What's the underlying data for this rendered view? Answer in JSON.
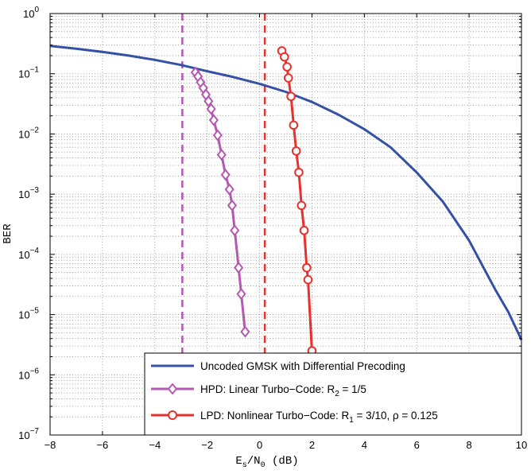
{
  "chart_data": {
    "type": "line",
    "title": "",
    "xlabel": {
      "base": "E",
      "sub1": "s",
      "mid": "/N",
      "sub2": "0",
      "unit": " (dB)"
    },
    "ylabel": "BER",
    "xlim": [
      -8,
      10
    ],
    "ylim_exp": [
      -7,
      0
    ],
    "yscale": "log",
    "grid": true,
    "x_ticks": [
      -8,
      -6,
      -4,
      -2,
      0,
      2,
      4,
      6,
      8,
      10
    ],
    "y_tick_exps": [
      -7,
      -6,
      -5,
      -4,
      -3,
      -2,
      -1,
      0
    ],
    "y_tick_base": "10",
    "legend_position": "lower-right",
    "vlines": [
      {
        "x": -2.95,
        "color": "#b558b0"
      },
      {
        "x": 0.2,
        "color": "#e8312c"
      }
    ],
    "series": [
      {
        "name": "Uncoded GMSK with Differential Precoding",
        "color": "#3451a6",
        "marker": "none",
        "x": [
          -8,
          -7,
          -6,
          -5,
          -4,
          -3,
          -2,
          -1,
          0,
          1,
          2,
          3,
          4,
          5,
          6,
          7,
          8,
          9,
          9.5,
          10
        ],
        "y": [
          0.29,
          0.26,
          0.23,
          0.2,
          0.17,
          0.14,
          0.11,
          0.088,
          0.068,
          0.05,
          0.034,
          0.021,
          0.012,
          0.006,
          0.0023,
          0.00075,
          0.00017,
          2.6e-05,
          1.1e-05,
          3.8e-06
        ]
      },
      {
        "name": "HPD: Linear Turbo−Code: R",
        "legend_sub": "2",
        "legend_tail": " = 1/5",
        "color": "#b558b0",
        "marker": "diamond",
        "x": [
          -2.45,
          -2.35,
          -2.25,
          -2.15,
          -2.05,
          -1.95,
          -1.85,
          -1.75,
          -1.6,
          -1.45,
          -1.3,
          -1.15,
          -1.05,
          -0.95,
          -0.8,
          -0.7,
          -0.55
        ],
        "y": [
          0.105,
          0.09,
          0.072,
          0.058,
          0.045,
          0.035,
          0.026,
          0.017,
          0.0095,
          0.0045,
          0.0021,
          0.0012,
          0.00065,
          0.00025,
          6e-05,
          2.2e-05,
          5.2e-06
        ]
      },
      {
        "name": "LPD: Nonlinear Turbo−Code: R",
        "legend_sub": "1",
        "legend_tail": " = 3/10, ρ = 0.125",
        "color": "#e8312c",
        "marker": "circle",
        "x": [
          0.85,
          0.95,
          1.05,
          1.1,
          1.2,
          1.3,
          1.4,
          1.5,
          1.6,
          1.7,
          1.8,
          1.85,
          2.0
        ],
        "y": [
          0.24,
          0.19,
          0.13,
          0.085,
          0.042,
          0.014,
          0.0052,
          0.0023,
          0.00065,
          0.00025,
          6e-05,
          3.8e-05,
          2.5e-06
        ]
      }
    ]
  }
}
